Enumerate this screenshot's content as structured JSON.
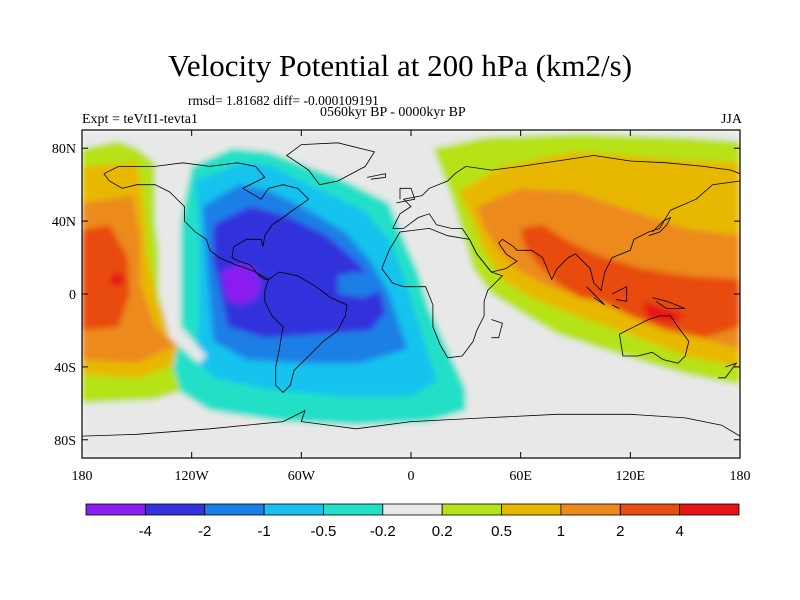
{
  "header": {
    "title": "Velocity Potential at 200 hPa (km2/s)",
    "stats": "rmsd= 1.81682 diff= -0.000109191",
    "period": "0560kyr BP - 0000kyr BP",
    "experiment": "Expt = teVtI1-tevta1",
    "season": "JJA"
  },
  "chart_data": {
    "type": "heatmap",
    "title": "Velocity Potential at 200 hPa (km2/s)",
    "x_ticks": [
      "180",
      "120W",
      "60W",
      "0",
      "60E",
      "120E",
      "180"
    ],
    "x_tick_values": [
      -180,
      -120,
      -60,
      0,
      60,
      120,
      180
    ],
    "y_ticks": [
      "80N",
      "40N",
      "0",
      "40S",
      "80S"
    ],
    "y_tick_values": [
      80,
      40,
      0,
      -40,
      -80
    ],
    "xlim": [
      -180,
      180
    ],
    "ylim": [
      -90,
      90
    ],
    "colorbar": {
      "levels": [
        "-4",
        "-2",
        "-1",
        "-0.5",
        "-0.2",
        "0.2",
        "0.5",
        "1",
        "2",
        "4"
      ],
      "colors": [
        "#8a1ef0",
        "#3333dd",
        "#1a7fe6",
        "#19c2ee",
        "#22e0c8",
        "#e8e8e8",
        "#b6e219",
        "#e8b800",
        "#ec8a1a",
        "#e84c10",
        "#e61414"
      ]
    },
    "regions": [
      {
        "level": 5,
        "note": "neutral background",
        "poly": [
          [
            -180,
            90
          ],
          [
            180,
            90
          ],
          [
            180,
            -90
          ],
          [
            -180,
            -90
          ]
        ]
      },
      {
        "level": 6,
        "poly": [
          [
            -180,
            80
          ],
          [
            -160,
            84
          ],
          [
            -150,
            80
          ],
          [
            -140,
            72
          ],
          [
            -140,
            40
          ],
          [
            -136,
            10
          ],
          [
            -128,
            -18
          ],
          [
            -110,
            -34
          ],
          [
            -105,
            -46
          ],
          [
            -140,
            -58
          ],
          [
            -180,
            -60
          ]
        ]
      },
      {
        "level": 7,
        "poly": [
          [
            -180,
            70
          ],
          [
            -150,
            72
          ],
          [
            -146,
            50
          ],
          [
            -144,
            20
          ],
          [
            -138,
            -6
          ],
          [
            -122,
            -26
          ],
          [
            -120,
            -36
          ],
          [
            -150,
            -46
          ],
          [
            -180,
            -44
          ]
        ]
      },
      {
        "level": 8,
        "poly": [
          [
            -180,
            50
          ],
          [
            -152,
            54
          ],
          [
            -148,
            30
          ],
          [
            -148,
            5
          ],
          [
            -140,
            -18
          ],
          [
            -128,
            -28
          ],
          [
            -150,
            -38
          ],
          [
            -180,
            -36
          ]
        ]
      },
      {
        "level": 9,
        "poly": [
          [
            -180,
            35
          ],
          [
            -165,
            38
          ],
          [
            -155,
            20
          ],
          [
            -154,
            0
          ],
          [
            -160,
            -18
          ],
          [
            -180,
            -20
          ]
        ]
      },
      {
        "level": 10,
        "poly": [
          [
            -164,
            10
          ],
          [
            -160,
            12
          ],
          [
            -156,
            8
          ],
          [
            -160,
            4
          ],
          [
            -165,
            6
          ]
        ]
      },
      {
        "level": 4,
        "poly": [
          [
            -120,
            70
          ],
          [
            -98,
            80
          ],
          [
            -78,
            78
          ],
          [
            -40,
            64
          ],
          [
            -12,
            50
          ],
          [
            -4,
            30
          ],
          [
            4,
            12
          ],
          [
            10,
            -8
          ],
          [
            18,
            -26
          ],
          [
            30,
            -52
          ],
          [
            30,
            -64
          ],
          [
            10,
            -70
          ],
          [
            -30,
            -72
          ],
          [
            -70,
            -70
          ],
          [
            -110,
            -64
          ],
          [
            -126,
            -54
          ],
          [
            -130,
            -40
          ],
          [
            -126,
            -20
          ],
          [
            -126,
            10
          ],
          [
            -126,
            40
          ]
        ]
      },
      {
        "level": 3,
        "poly": [
          [
            -118,
            62
          ],
          [
            -92,
            72
          ],
          [
            -76,
            70
          ],
          [
            -52,
            58
          ],
          [
            -26,
            46
          ],
          [
            -12,
            30
          ],
          [
            -4,
            10
          ],
          [
            2,
            -10
          ],
          [
            8,
            -28
          ],
          [
            14,
            -48
          ],
          [
            0,
            -56
          ],
          [
            -40,
            -56
          ],
          [
            -80,
            -52
          ],
          [
            -108,
            -46
          ],
          [
            -118,
            -36
          ],
          [
            -116,
            -16
          ],
          [
            -116,
            10
          ],
          [
            -116,
            40
          ]
        ]
      },
      {
        "level": 2,
        "poly": [
          [
            -114,
            48
          ],
          [
            -94,
            60
          ],
          [
            -76,
            56
          ],
          [
            -56,
            46
          ],
          [
            -36,
            34
          ],
          [
            -22,
            18
          ],
          [
            -12,
            0
          ],
          [
            -6,
            -18
          ],
          [
            -2,
            -30
          ],
          [
            -28,
            -38
          ],
          [
            -60,
            -38
          ],
          [
            -90,
            -36
          ],
          [
            -108,
            -26
          ],
          [
            -110,
            -4
          ],
          [
            -112,
            20
          ]
        ]
      },
      {
        "level": 1,
        "poly": [
          [
            -108,
            38
          ],
          [
            -88,
            48
          ],
          [
            -66,
            42
          ],
          [
            -46,
            32
          ],
          [
            -30,
            18
          ],
          [
            -18,
            4
          ],
          [
            -14,
            -10
          ],
          [
            -22,
            -20
          ],
          [
            -52,
            -22
          ],
          [
            -80,
            -24
          ],
          [
            -100,
            -18
          ],
          [
            -104,
            0
          ],
          [
            -108,
            18
          ]
        ]
      },
      {
        "level": 2,
        "poly": [
          [
            -40,
            10
          ],
          [
            -30,
            12
          ],
          [
            -18,
            10
          ],
          [
            -16,
            2
          ],
          [
            -26,
            -2
          ],
          [
            -40,
            0
          ]
        ]
      },
      {
        "level": 0,
        "poly": [
          [
            -104,
            12
          ],
          [
            -94,
            16
          ],
          [
            -86,
            14
          ],
          [
            -82,
            6
          ],
          [
            -84,
            -2
          ],
          [
            -92,
            -6
          ],
          [
            -100,
            -4
          ]
        ]
      },
      {
        "level": 5,
        "note": "neutral west-coast strip",
        "poly": [
          [
            -138,
            40
          ],
          [
            -130,
            60
          ],
          [
            -126,
            60
          ],
          [
            -126,
            30
          ],
          [
            -128,
            0
          ],
          [
            -126,
            -18
          ],
          [
            -112,
            -34
          ],
          [
            -116,
            -38
          ],
          [
            -132,
            -24
          ],
          [
            -138,
            0
          ]
        ]
      },
      {
        "level": 6,
        "poly": [
          [
            12,
            80
          ],
          [
            40,
            86
          ],
          [
            90,
            88
          ],
          [
            150,
            86
          ],
          [
            180,
            84
          ],
          [
            180,
            -50
          ],
          [
            150,
            -44
          ],
          [
            110,
            -32
          ],
          [
            80,
            -22
          ],
          [
            60,
            -10
          ],
          [
            44,
            0
          ],
          [
            34,
            14
          ],
          [
            28,
            34
          ],
          [
            22,
            54
          ]
        ]
      },
      {
        "level": 7,
        "poly": [
          [
            26,
            56
          ],
          [
            50,
            70
          ],
          [
            90,
            78
          ],
          [
            140,
            74
          ],
          [
            180,
            72
          ],
          [
            180,
            -40
          ],
          [
            150,
            -34
          ],
          [
            120,
            -22
          ],
          [
            90,
            -12
          ],
          [
            66,
            -2
          ],
          [
            50,
            8
          ],
          [
            40,
            24
          ],
          [
            34,
            40
          ]
        ]
      },
      {
        "level": 8,
        "poly": [
          [
            36,
            48
          ],
          [
            60,
            58
          ],
          [
            90,
            56
          ],
          [
            120,
            46
          ],
          [
            150,
            36
          ],
          [
            180,
            32
          ],
          [
            180,
            -30
          ],
          [
            150,
            -22
          ],
          [
            120,
            -10
          ],
          [
            96,
            -2
          ],
          [
            76,
            4
          ],
          [
            60,
            12
          ],
          [
            48,
            24
          ],
          [
            40,
            36
          ]
        ]
      },
      {
        "level": 9,
        "poly": [
          [
            60,
            36
          ],
          [
            72,
            38
          ],
          [
            84,
            30
          ],
          [
            100,
            22
          ],
          [
            126,
            14
          ],
          [
            150,
            10
          ],
          [
            180,
            8
          ],
          [
            180,
            -18
          ],
          [
            160,
            -24
          ],
          [
            140,
            -20
          ],
          [
            120,
            -12
          ],
          [
            104,
            -4
          ],
          [
            92,
            -2
          ],
          [
            80,
            6
          ],
          [
            70,
            16
          ],
          [
            62,
            26
          ]
        ]
      },
      {
        "level": 10,
        "poly": [
          [
            126,
            -4
          ],
          [
            140,
            -8
          ],
          [
            150,
            -12
          ],
          [
            144,
            -16
          ],
          [
            130,
            -14
          ]
        ]
      }
    ]
  }
}
